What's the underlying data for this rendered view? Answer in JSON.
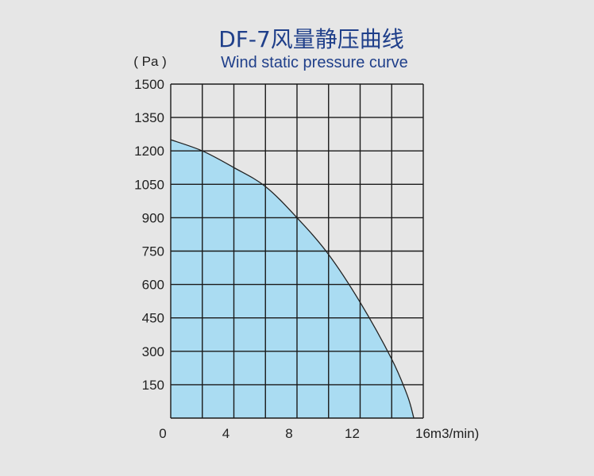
{
  "chart_data": {
    "type": "area",
    "title": "DF-7风量静压曲线",
    "subtitle": "Wind static pressure curve",
    "ylabel": "( Pa )",
    "x_unit_suffix": "m3/min)",
    "x_ticks": [
      0,
      4,
      8,
      12,
      16
    ],
    "y_ticks": [
      150,
      300,
      450,
      600,
      750,
      900,
      1050,
      1200,
      1350,
      1500
    ],
    "xlim": [
      0,
      16
    ],
    "ylim": [
      0,
      1500
    ],
    "grid": true,
    "series": [
      {
        "points": [
          [
            0,
            1250
          ],
          [
            2,
            1200
          ],
          [
            4,
            1125
          ],
          [
            6,
            1040
          ],
          [
            8,
            900
          ],
          [
            10,
            735
          ],
          [
            12,
            520
          ],
          [
            14,
            265
          ],
          [
            15,
            100
          ],
          [
            15.4,
            0
          ]
        ]
      }
    ],
    "colors": {
      "fill": "#aadcf2",
      "curve": "#222222",
      "grid": "#1a1a1a",
      "title": "#1f3f8a"
    }
  }
}
